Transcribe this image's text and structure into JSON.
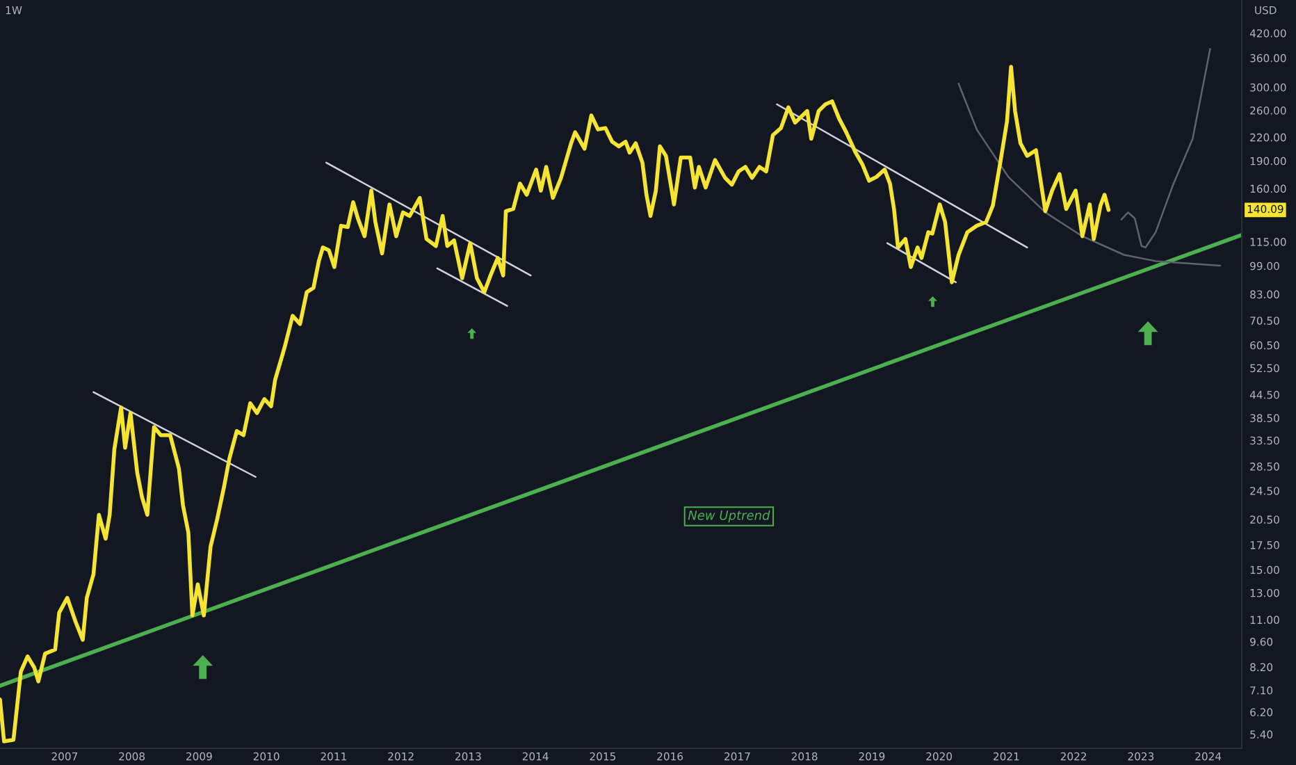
{
  "chart_data": {
    "type": "line",
    "title": "1W",
    "ylabel": "USD",
    "log": "y",
    "xlim": [
      2006.04,
      2024.5
    ],
    "ylim": [
      4.95,
      516
    ],
    "xticks": [
      2007,
      2008,
      2009,
      2010,
      2011,
      2012,
      2013,
      2014,
      2015,
      2016,
      2017,
      2018,
      2019,
      2020,
      2021,
      2022,
      2023,
      2024
    ],
    "yticks": [
      {
        "value": 420,
        "label": "420.00"
      },
      {
        "value": 360,
        "label": "360.00"
      },
      {
        "value": 300,
        "label": "300.00"
      },
      {
        "value": 260,
        "label": "260.00"
      },
      {
        "value": 220,
        "label": "220.00"
      },
      {
        "value": 190,
        "label": "190.00"
      },
      {
        "value": 160,
        "label": "160.00"
      },
      {
        "value": 115,
        "label": "115.00"
      },
      {
        "value": 99,
        "label": "99.00"
      },
      {
        "value": 83,
        "label": "83.00"
      },
      {
        "value": 70.5,
        "label": "70.50"
      },
      {
        "value": 60.5,
        "label": "60.50"
      },
      {
        "value": 52.5,
        "label": "52.50"
      },
      {
        "value": 44.5,
        "label": "44.50"
      },
      {
        "value": 38.5,
        "label": "38.50"
      },
      {
        "value": 33.5,
        "label": "33.50"
      },
      {
        "value": 28.5,
        "label": "28.50"
      },
      {
        "value": 24.5,
        "label": "24.50"
      },
      {
        "value": 20.5,
        "label": "20.50"
      },
      {
        "value": 17.5,
        "label": "17.50"
      },
      {
        "value": 15,
        "label": "15.00"
      },
      {
        "value": 13,
        "label": "13.00"
      },
      {
        "value": 11,
        "label": "11.00"
      },
      {
        "value": 9.6,
        "label": "9.60"
      },
      {
        "value": 8.2,
        "label": "8.20"
      },
      {
        "value": 7.1,
        "label": "7.10"
      },
      {
        "value": 6.2,
        "label": "6.20"
      },
      {
        "value": 5.4,
        "label": "5.40"
      }
    ],
    "annotations": [
      "New Uptrend",
      "140.09"
    ],
    "series": [
      {
        "type": "line",
        "color": "#4caf50",
        "x": [
          2006.04,
          2024.5
        ],
        "values": [
          7.3,
          120
        ]
      },
      {
        "type": "line",
        "color": "#d1d4dc",
        "x": [
          2007.43,
          2009.84
        ],
        "values": [
          45.2,
          26.7
        ]
      },
      {
        "type": "line",
        "color": "#d1d4dc",
        "x": [
          2010.89,
          2013.93
        ],
        "values": [
          188,
          93.3
        ]
      },
      {
        "type": "line",
        "color": "#d1d4dc",
        "x": [
          2012.54,
          2013.58
        ],
        "values": [
          97.5,
          77.2
        ]
      },
      {
        "type": "line",
        "color": "#d1d4dc",
        "x": [
          2017.59,
          2021.31
        ],
        "values": [
          270,
          111
        ]
      },
      {
        "type": "line",
        "color": "#d1d4dc",
        "x": [
          2019.23,
          2020.25
        ],
        "values": [
          114,
          89.4
        ]
      },
      {
        "type": "line",
        "color": "#5d6470",
        "x": [
          2020.29,
          2020.56,
          2021.03,
          2021.58,
          2022.13,
          2022.75,
          2023.22,
          2024.18
        ],
        "values": [
          307,
          231,
          172,
          138,
          119,
          106,
          102,
          99.1
        ]
      },
      {
        "type": "line",
        "color": "#5d6470",
        "x": [
          2022.71,
          2022.81,
          2022.91,
          2023.01,
          2023.07,
          2023.22,
          2023.48,
          2023.77,
          2024.03
        ],
        "values": [
          132,
          138,
          133,
          112,
          111,
          122,
          164,
          218,
          381
        ]
      },
      {
        "type": "line",
        "color": "#f5e431",
        "x": [
          2006.04,
          2006.1,
          2006.24,
          2006.35,
          2006.45,
          2006.55,
          2006.61,
          2006.71,
          2006.86,
          2006.92,
          2007.04,
          2007.16,
          2007.27,
          2007.33,
          2007.43,
          2007.51,
          2007.61,
          2007.67,
          2007.74,
          2007.84,
          2007.9,
          2007.98,
          2008.08,
          2008.15,
          2008.23,
          2008.33,
          2008.43,
          2008.57,
          2008.7,
          2008.76,
          2008.84,
          2008.9,
          2008.98,
          2009.07,
          2009.17,
          2009.27,
          2009.37,
          2009.45,
          2009.56,
          2009.66,
          2009.76,
          2009.86,
          2009.97,
          2010.07,
          2010.13,
          2010.27,
          2010.39,
          2010.5,
          2010.6,
          2010.7,
          2010.78,
          2010.84,
          2010.93,
          2011.01,
          2011.11,
          2011.21,
          2011.29,
          2011.36,
          2011.46,
          2011.56,
          2011.62,
          2011.72,
          2011.83,
          2011.93,
          2012.03,
          2012.13,
          2012.28,
          2012.38,
          2012.52,
          2012.62,
          2012.69,
          2012.79,
          2012.91,
          2013.03,
          2013.13,
          2013.24,
          2013.34,
          2013.44,
          2013.52,
          2013.56,
          2013.67,
          2013.77,
          2013.87,
          2014.01,
          2014.08,
          2014.16,
          2014.26,
          2014.38,
          2014.53,
          2014.59,
          2014.73,
          2014.83,
          2014.93,
          2015.04,
          2015.14,
          2015.24,
          2015.34,
          2015.4,
          2015.49,
          2015.59,
          2015.65,
          2015.71,
          2015.79,
          2015.85,
          2015.94,
          2016.06,
          2016.16,
          2016.3,
          2016.37,
          2016.43,
          2016.53,
          2016.67,
          2016.82,
          2016.92,
          2017.02,
          2017.12,
          2017.22,
          2017.33,
          2017.43,
          2017.53,
          2017.65,
          2017.76,
          2017.86,
          2018.04,
          2018.1,
          2018.21,
          2018.31,
          2018.41,
          2018.51,
          2018.62,
          2018.76,
          2018.86,
          2018.96,
          2019.07,
          2019.19,
          2019.27,
          2019.33,
          2019.39,
          2019.5,
          2019.58,
          2019.68,
          2019.74,
          2019.84,
          2019.9,
          2020.01,
          2020.09,
          2020.19,
          2020.29,
          2020.42,
          2020.56,
          2020.7,
          2020.8,
          2020.91,
          2021.01,
          2021.07,
          2021.13,
          2021.21,
          2021.31,
          2021.44,
          2021.58,
          2021.68,
          2021.79,
          2021.89,
          2022.03,
          2022.13,
          2022.24,
          2022.3,
          2022.4,
          2022.46,
          2022.52
        ],
        "values": [
          6.7,
          5.17,
          5.22,
          7.97,
          8.76,
          8.17,
          7.5,
          8.91,
          9.14,
          11.5,
          12.6,
          10.9,
          9.71,
          12.6,
          14.6,
          21.1,
          18.2,
          21.1,
          31.7,
          41.1,
          32.0,
          39.7,
          27.4,
          23.6,
          21.1,
          36.4,
          34.6,
          34.6,
          28.1,
          22.4,
          18.9,
          11.3,
          13.7,
          11.3,
          17.3,
          20.6,
          25.1,
          29.9,
          35.5,
          34.6,
          42.2,
          39.7,
          43.3,
          41.4,
          48.8,
          59.6,
          72.6,
          69.0,
          84.1,
          86.4,
          102,
          111,
          109,
          98.3,
          127,
          126,
          147,
          133,
          119,
          158,
          130,
          107,
          145,
          119,
          138,
          135,
          151,
          117,
          112,
          135,
          112,
          116,
          91.7,
          114,
          91.7,
          84.1,
          94.1,
          104,
          93.3,
          139,
          141,
          165,
          154,
          180,
          158,
          183,
          151,
          171,
          212,
          227,
          205,
          252,
          231,
          233,
          214,
          208,
          214,
          200,
          212,
          188,
          154,
          135,
          158,
          208,
          196,
          145,
          194,
          194,
          161,
          183,
          161,
          191,
          171,
          164,
          178,
          183,
          171,
          183,
          178,
          223,
          233,
          265,
          241,
          259,
          218,
          259,
          270,
          275,
          248,
          227,
          200,
          186,
          168,
          172,
          180,
          165,
          141,
          111,
          117,
          98.3,
          111,
          104,
          122,
          121,
          145,
          130,
          89.4,
          106,
          122,
          127,
          130,
          144,
          188,
          243,
          341,
          259,
          212,
          196,
          203,
          139,
          158,
          175,
          141,
          158,
          119,
          145,
          117,
          144,
          154,
          140.09
        ]
      }
    ]
  }
}
